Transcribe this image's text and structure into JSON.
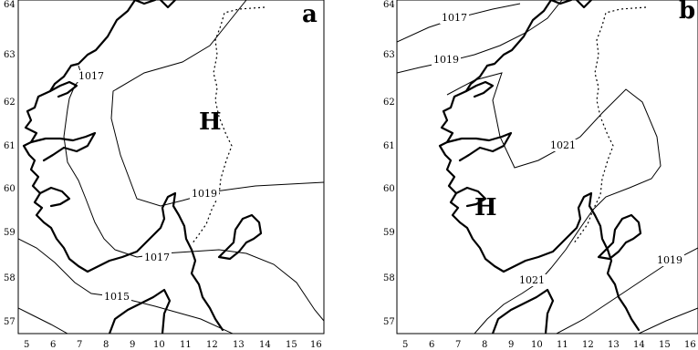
{
  "panels": [
    {
      "id": "a",
      "letter": "a",
      "high_label": "H",
      "lon_ticks": [
        "5",
        "6",
        "7",
        "8",
        "9",
        "10",
        "11",
        "12",
        "13",
        "14",
        "15",
        "16"
      ],
      "lat_ticks": [
        "57",
        "58",
        "59",
        "60",
        "61",
        "62",
        "63",
        "64"
      ],
      "isobar_labels": [
        "1017",
        "1019",
        "1017",
        "1015"
      ]
    },
    {
      "id": "b",
      "letter": "b",
      "high_label": "H",
      "lon_ticks": [
        "5",
        "6",
        "7",
        "8",
        "9",
        "10",
        "11",
        "12",
        "13",
        "14",
        "15",
        "16"
      ],
      "lat_ticks": [
        "57",
        "58",
        "59",
        "60",
        "61",
        "62",
        "63",
        "64"
      ],
      "isobar_labels": [
        "1017",
        "1019",
        "1021",
        "1021",
        "1019"
      ]
    }
  ]
}
